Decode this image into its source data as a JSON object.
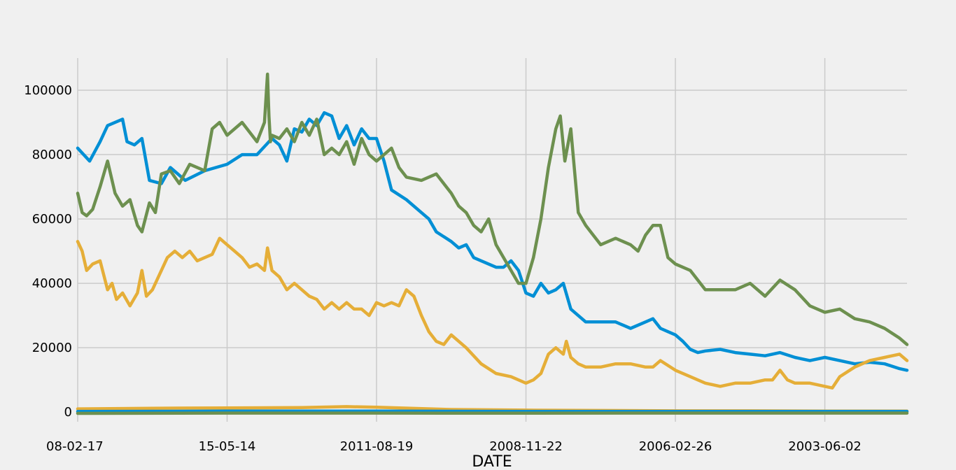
{
  "chart_data": {
    "type": "line",
    "title": "",
    "xlabel": "DATE",
    "ylabel": "",
    "x_tick_labels": [
      "08-02-17",
      "15-05-14",
      "2011-08-19",
      "2008-11-22",
      "2006-02-26",
      "2003-06-02"
    ],
    "x_tick_positions": [
      0,
      1000,
      2000,
      3000,
      4000,
      5000
    ],
    "xlim": [
      0,
      5550
    ],
    "ylim": [
      -3000,
      110000
    ],
    "y_ticks": [
      0,
      20000,
      40000,
      60000,
      80000,
      100000
    ],
    "y_tick_labels": [
      "0",
      "20000",
      "40000",
      "60000",
      "80000",
      "100000"
    ],
    "grid": true,
    "legend": "none",
    "series": [
      {
        "color": "#008fd5",
        "x": [
          0,
          80,
          150,
          200,
          300,
          330,
          380,
          430,
          480,
          560,
          620,
          720,
          850,
          1000,
          1100,
          1200,
          1300,
          1350,
          1400,
          1450,
          1500,
          1550,
          1600,
          1650,
          1700,
          1750,
          1800,
          1850,
          1900,
          1950,
          2000,
          2050,
          2100,
          2200,
          2300,
          2350,
          2400,
          2500,
          2550,
          2600,
          2650,
          2700,
          2800,
          2850,
          2900,
          2950,
          3000,
          3050,
          3100,
          3150,
          3200,
          3250,
          3300,
          3400,
          3500,
          3600,
          3700,
          3800,
          3850,
          3900,
          3950,
          4000,
          4050,
          4100,
          4150,
          4200,
          4300,
          4400,
          4500,
          4600,
          4700,
          4800,
          4900,
          5000,
          5100,
          5200,
          5300,
          5400,
          5500,
          5550
        ],
        "y": [
          82000,
          78000,
          84000,
          89000,
          91000,
          84000,
          83000,
          85000,
          72000,
          71000,
          76000,
          72000,
          75000,
          77000,
          80000,
          80000,
          85000,
          83000,
          78000,
          88000,
          87000,
          91000,
          89000,
          93000,
          92000,
          85000,
          89000,
          83000,
          88000,
          85000,
          85000,
          78000,
          69000,
          66000,
          62000,
          60000,
          56000,
          53000,
          51000,
          52000,
          48000,
          47000,
          45000,
          45000,
          47000,
          44000,
          37000,
          36000,
          40000,
          37000,
          38000,
          40000,
          32000,
          28000,
          28000,
          28000,
          26000,
          28000,
          29000,
          26000,
          25000,
          24000,
          22000,
          19500,
          18500,
          19000,
          19500,
          18500,
          18000,
          17500,
          18500,
          17000,
          16000,
          17000,
          16000,
          15000,
          15500,
          15000,
          13500,
          13000
        ]
      },
      {
        "color": "#6d904f",
        "x": [
          0,
          30,
          60,
          100,
          150,
          200,
          250,
          300,
          350,
          400,
          430,
          480,
          520,
          560,
          620,
          680,
          750,
          850,
          900,
          950,
          1000,
          1100,
          1200,
          1250,
          1270,
          1280,
          1290,
          1300,
          1350,
          1400,
          1450,
          1500,
          1550,
          1600,
          1650,
          1700,
          1750,
          1800,
          1850,
          1900,
          1950,
          2000,
          2100,
          2150,
          2200,
          2300,
          2400,
          2500,
          2550,
          2600,
          2650,
          2700,
          2750,
          2800,
          2850,
          2900,
          2950,
          3000,
          3050,
          3100,
          3150,
          3200,
          3230,
          3260,
          3300,
          3350,
          3400,
          3450,
          3500,
          3600,
          3700,
          3750,
          3800,
          3850,
          3900,
          3950,
          4000,
          4100,
          4200,
          4300,
          4400,
          4500,
          4600,
          4700,
          4800,
          4900,
          4950,
          5000,
          5100,
          5200,
          5300,
          5400,
          5500,
          5550
        ],
        "y": [
          68000,
          62000,
          61000,
          63000,
          70000,
          78000,
          68000,
          64000,
          66000,
          58000,
          56000,
          65000,
          62000,
          74000,
          75000,
          71000,
          77000,
          75000,
          88000,
          90000,
          86000,
          90000,
          84000,
          90000,
          105000,
          92000,
          84000,
          86000,
          85000,
          88000,
          84000,
          90000,
          86000,
          91000,
          80000,
          82000,
          80000,
          84000,
          77000,
          85000,
          80000,
          78000,
          82000,
          76000,
          73000,
          72000,
          74000,
          68000,
          64000,
          62000,
          58000,
          56000,
          60000,
          52000,
          48000,
          44000,
          40000,
          40000,
          48000,
          60000,
          76000,
          88000,
          92000,
          78000,
          88000,
          62000,
          58000,
          55000,
          52000,
          54000,
          52000,
          50000,
          55000,
          58000,
          58000,
          48000,
          46000,
          44000,
          38000,
          38000,
          38000,
          40000,
          36000,
          41000,
          38000,
          33000,
          32000,
          31000,
          32000,
          29000,
          28000,
          26000,
          23000,
          21000
        ]
      },
      {
        "color": "#e5ae38",
        "x": [
          0,
          30,
          60,
          100,
          150,
          200,
          230,
          260,
          300,
          350,
          400,
          430,
          460,
          500,
          560,
          600,
          650,
          700,
          750,
          800,
          850,
          900,
          950,
          1000,
          1050,
          1100,
          1150,
          1200,
          1250,
          1270,
          1300,
          1350,
          1400,
          1450,
          1500,
          1550,
          1600,
          1650,
          1700,
          1750,
          1800,
          1850,
          1900,
          1950,
          2000,
          2050,
          2100,
          2150,
          2200,
          2250,
          2300,
          2350,
          2400,
          2450,
          2500,
          2600,
          2700,
          2800,
          2900,
          2950,
          3000,
          3050,
          3100,
          3150,
          3200,
          3250,
          3270,
          3300,
          3350,
          3400,
          3500,
          3600,
          3700,
          3800,
          3850,
          3900,
          4000,
          4100,
          4200,
          4300,
          4400,
          4500,
          4600,
          4650,
          4700,
          4750,
          4800,
          4900,
          5000,
          5050,
          5100,
          5200,
          5300,
          5400,
          5500,
          5550
        ],
        "y": [
          53000,
          50000,
          44000,
          46000,
          47000,
          38000,
          40000,
          35000,
          37000,
          33000,
          37000,
          44000,
          36000,
          38000,
          44000,
          48000,
          50000,
          48000,
          50000,
          47000,
          48000,
          49000,
          54000,
          52000,
          50000,
          48000,
          45000,
          46000,
          44000,
          51000,
          44000,
          42000,
          38000,
          40000,
          38000,
          36000,
          35000,
          32000,
          34000,
          32000,
          34000,
          32000,
          32000,
          30000,
          34000,
          33000,
          34000,
          33000,
          38000,
          36000,
          30000,
          25000,
          22000,
          21000,
          24000,
          20000,
          15000,
          12000,
          11000,
          10000,
          9000,
          10000,
          12000,
          18000,
          20000,
          18000,
          22000,
          17000,
          15000,
          14000,
          14000,
          15000,
          15000,
          14000,
          14000,
          16000,
          13000,
          11000,
          9000,
          8000,
          9000,
          9000,
          10000,
          10000,
          13000,
          10000,
          9000,
          9000,
          8000,
          7500,
          11000,
          14000,
          16000,
          17000,
          18000,
          16000
        ]
      },
      {
        "color": "#e5ae38",
        "x": [
          0,
          500,
          1000,
          1500,
          1800,
          2000,
          2500,
          3000,
          3500,
          4000,
          4500,
          5000,
          5550
        ],
        "y": [
          1000,
          1200,
          1300,
          1400,
          1700,
          1500,
          800,
          600,
          500,
          400,
          400,
          300,
          300
        ]
      },
      {
        "color": "#008fd5",
        "x": [
          0,
          1000,
          2000,
          3000,
          4000,
          5000,
          5550
        ],
        "y": [
          200,
          300,
          300,
          200,
          200,
          200,
          200
        ]
      },
      {
        "color": "#6d904f",
        "x": [
          0,
          1000,
          2000,
          3000,
          4000,
          5000,
          5550
        ],
        "y": [
          -400,
          -300,
          -300,
          -350,
          -300,
          -300,
          -300
        ]
      }
    ]
  }
}
